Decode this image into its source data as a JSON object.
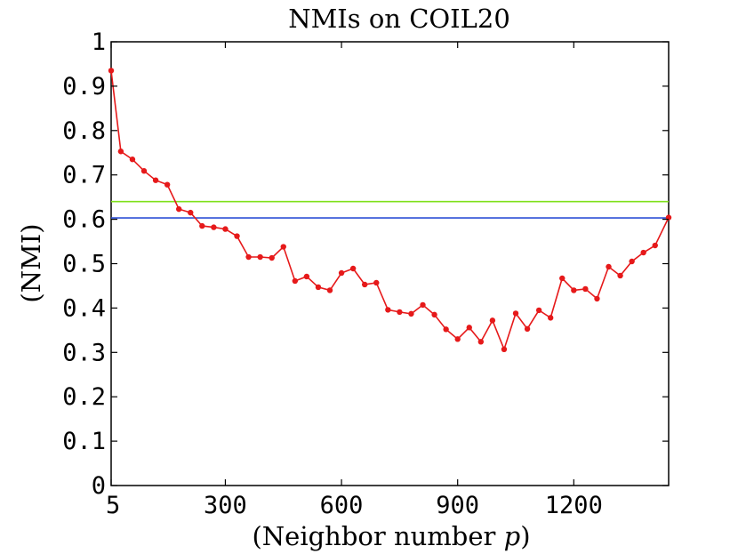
{
  "chart_data": {
    "type": "line",
    "title": "NMIs on COIL20",
    "xlabel": "(Neighbor number ",
    "xlabel_var": "p",
    "xlabel_close": ")",
    "ylabel": "(NMI)",
    "xlim": [
      5,
      1445
    ],
    "ylim": [
      0,
      1
    ],
    "x_ticks": [
      5,
      300,
      600,
      900,
      1200
    ],
    "x_tick_labels": [
      "5",
      "300",
      "600",
      "900",
      "1200"
    ],
    "y_ticks": [
      0,
      0.1,
      0.2,
      0.3,
      0.4,
      0.5,
      0.6,
      0.7,
      0.8,
      0.9,
      1
    ],
    "y_tick_labels": [
      "0",
      "0.1",
      "0.2",
      "0.3",
      "0.4",
      "0.5",
      "0.6",
      "0.7",
      "0.8",
      "0.9",
      "1"
    ],
    "grid": false,
    "series": [
      {
        "color": "#e6191a",
        "marker": "dot",
        "x": [
          5,
          30,
          60,
          90,
          120,
          150,
          180,
          210,
          240,
          270,
          300,
          330,
          360,
          390,
          420,
          450,
          480,
          510,
          540,
          570,
          600,
          630,
          660,
          690,
          720,
          750,
          780,
          810,
          840,
          870,
          900,
          930,
          960,
          990,
          1020,
          1050,
          1080,
          1110,
          1140,
          1170,
          1200,
          1230,
          1260,
          1290,
          1320,
          1350,
          1380,
          1410,
          1445
        ],
        "values": [
          0.935,
          0.753,
          0.735,
          0.709,
          0.688,
          0.678,
          0.623,
          0.615,
          0.585,
          0.582,
          0.578,
          0.562,
          0.515,
          0.515,
          0.513,
          0.538,
          0.461,
          0.471,
          0.447,
          0.44,
          0.479,
          0.489,
          0.453,
          0.457,
          0.396,
          0.391,
          0.387,
          0.407,
          0.385,
          0.352,
          0.33,
          0.356,
          0.324,
          0.372,
          0.307,
          0.388,
          0.353,
          0.395,
          0.378,
          0.467,
          0.44,
          0.443,
          0.421,
          0.493,
          0.473,
          0.505,
          0.525,
          0.541,
          0.604
        ]
      },
      {
        "color": "#7fe01a",
        "marker": "none",
        "x": [
          5,
          1445
        ],
        "values": [
          0.64,
          0.64
        ]
      },
      {
        "color": "#2b4fd6",
        "marker": "none",
        "x": [
          5,
          1445
        ],
        "values": [
          0.603,
          0.603
        ]
      }
    ]
  }
}
